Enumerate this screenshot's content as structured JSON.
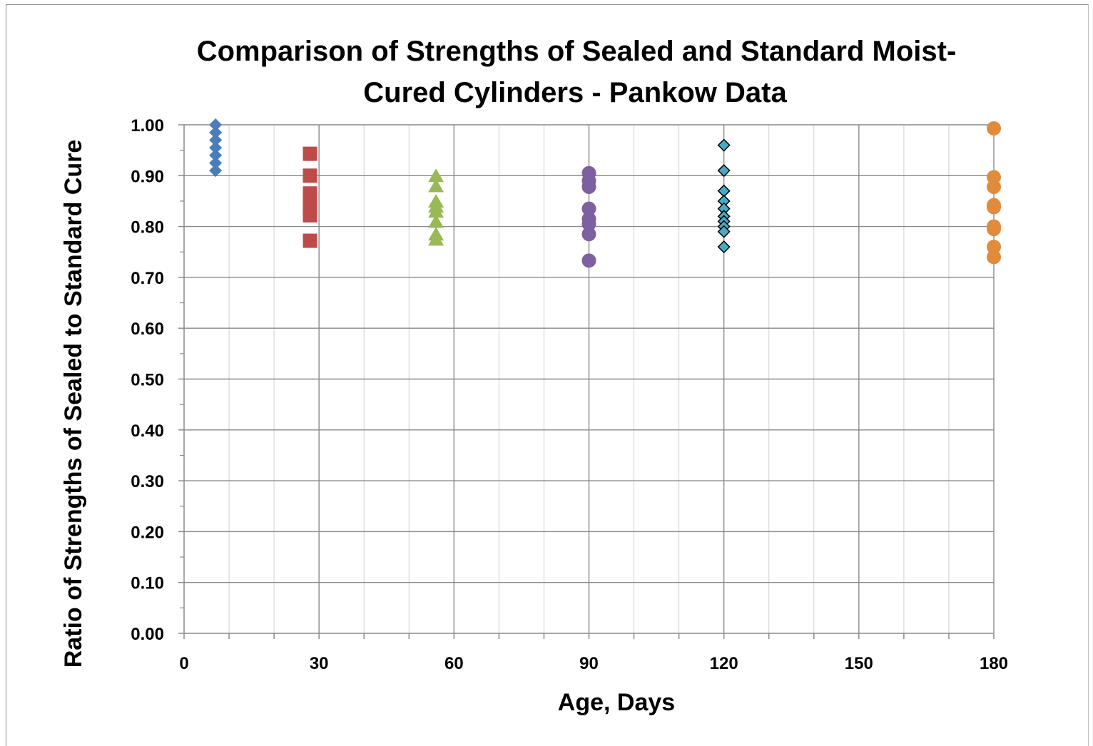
{
  "chart_data": {
    "type": "scatter",
    "title_lines": [
      "Comparison of Strengths of Sealed and Standard Moist-",
      "Cured Cylinders - Pankow Data"
    ],
    "xlabel": "Age, Days",
    "ylabel": "Ratio of Strengths of Sealed to Standard Cure",
    "xlim": [
      0,
      180
    ],
    "ylim": [
      0,
      1.0
    ],
    "x_ticks": [
      0,
      30,
      60,
      90,
      120,
      150,
      180
    ],
    "x_tick_labels": [
      "0",
      "30",
      "60",
      "90",
      "120",
      "150",
      "180"
    ],
    "y_ticks": [
      0,
      0.1,
      0.2,
      0.3,
      0.4,
      0.5,
      0.6,
      0.7,
      0.8,
      0.9,
      1.0
    ],
    "y_tick_labels": [
      "0.00",
      "0.10",
      "0.20",
      "0.30",
      "0.40",
      "0.50",
      "0.60",
      "0.70",
      "0.80",
      "0.90",
      "1.00"
    ],
    "grid": true,
    "legend": "none",
    "series": [
      {
        "marker": "diamond",
        "color": "#4a7ebb",
        "x": 7,
        "values": [
          1.0,
          0.985,
          0.97,
          0.955,
          0.94,
          0.925,
          0.91
        ]
      },
      {
        "marker": "square",
        "color": "#be4b48",
        "x": 28,
        "values": [
          0.943,
          0.9,
          0.865,
          0.85,
          0.84,
          0.83,
          0.822,
          0.772
        ]
      },
      {
        "marker": "triangle",
        "color": "#98b954",
        "x": 56,
        "values": [
          0.9,
          0.88,
          0.85,
          0.84,
          0.83,
          0.81,
          0.785,
          0.775
        ]
      },
      {
        "marker": "circle",
        "color": "#7d60a0",
        "x": 90,
        "values": [
          0.905,
          0.89,
          0.878,
          0.835,
          0.815,
          0.805,
          0.785,
          0.733
        ]
      },
      {
        "marker": "diamond-outline",
        "color": "#46aac5",
        "x": 120,
        "values": [
          0.96,
          0.91,
          0.87,
          0.85,
          0.835,
          0.82,
          0.81,
          0.8,
          0.79,
          0.76
        ]
      },
      {
        "marker": "circle",
        "color": "#e28b3d",
        "x": 180,
        "values": [
          0.993,
          0.897,
          0.878,
          0.842,
          0.838,
          0.8,
          0.795,
          0.76,
          0.74
        ]
      }
    ]
  }
}
